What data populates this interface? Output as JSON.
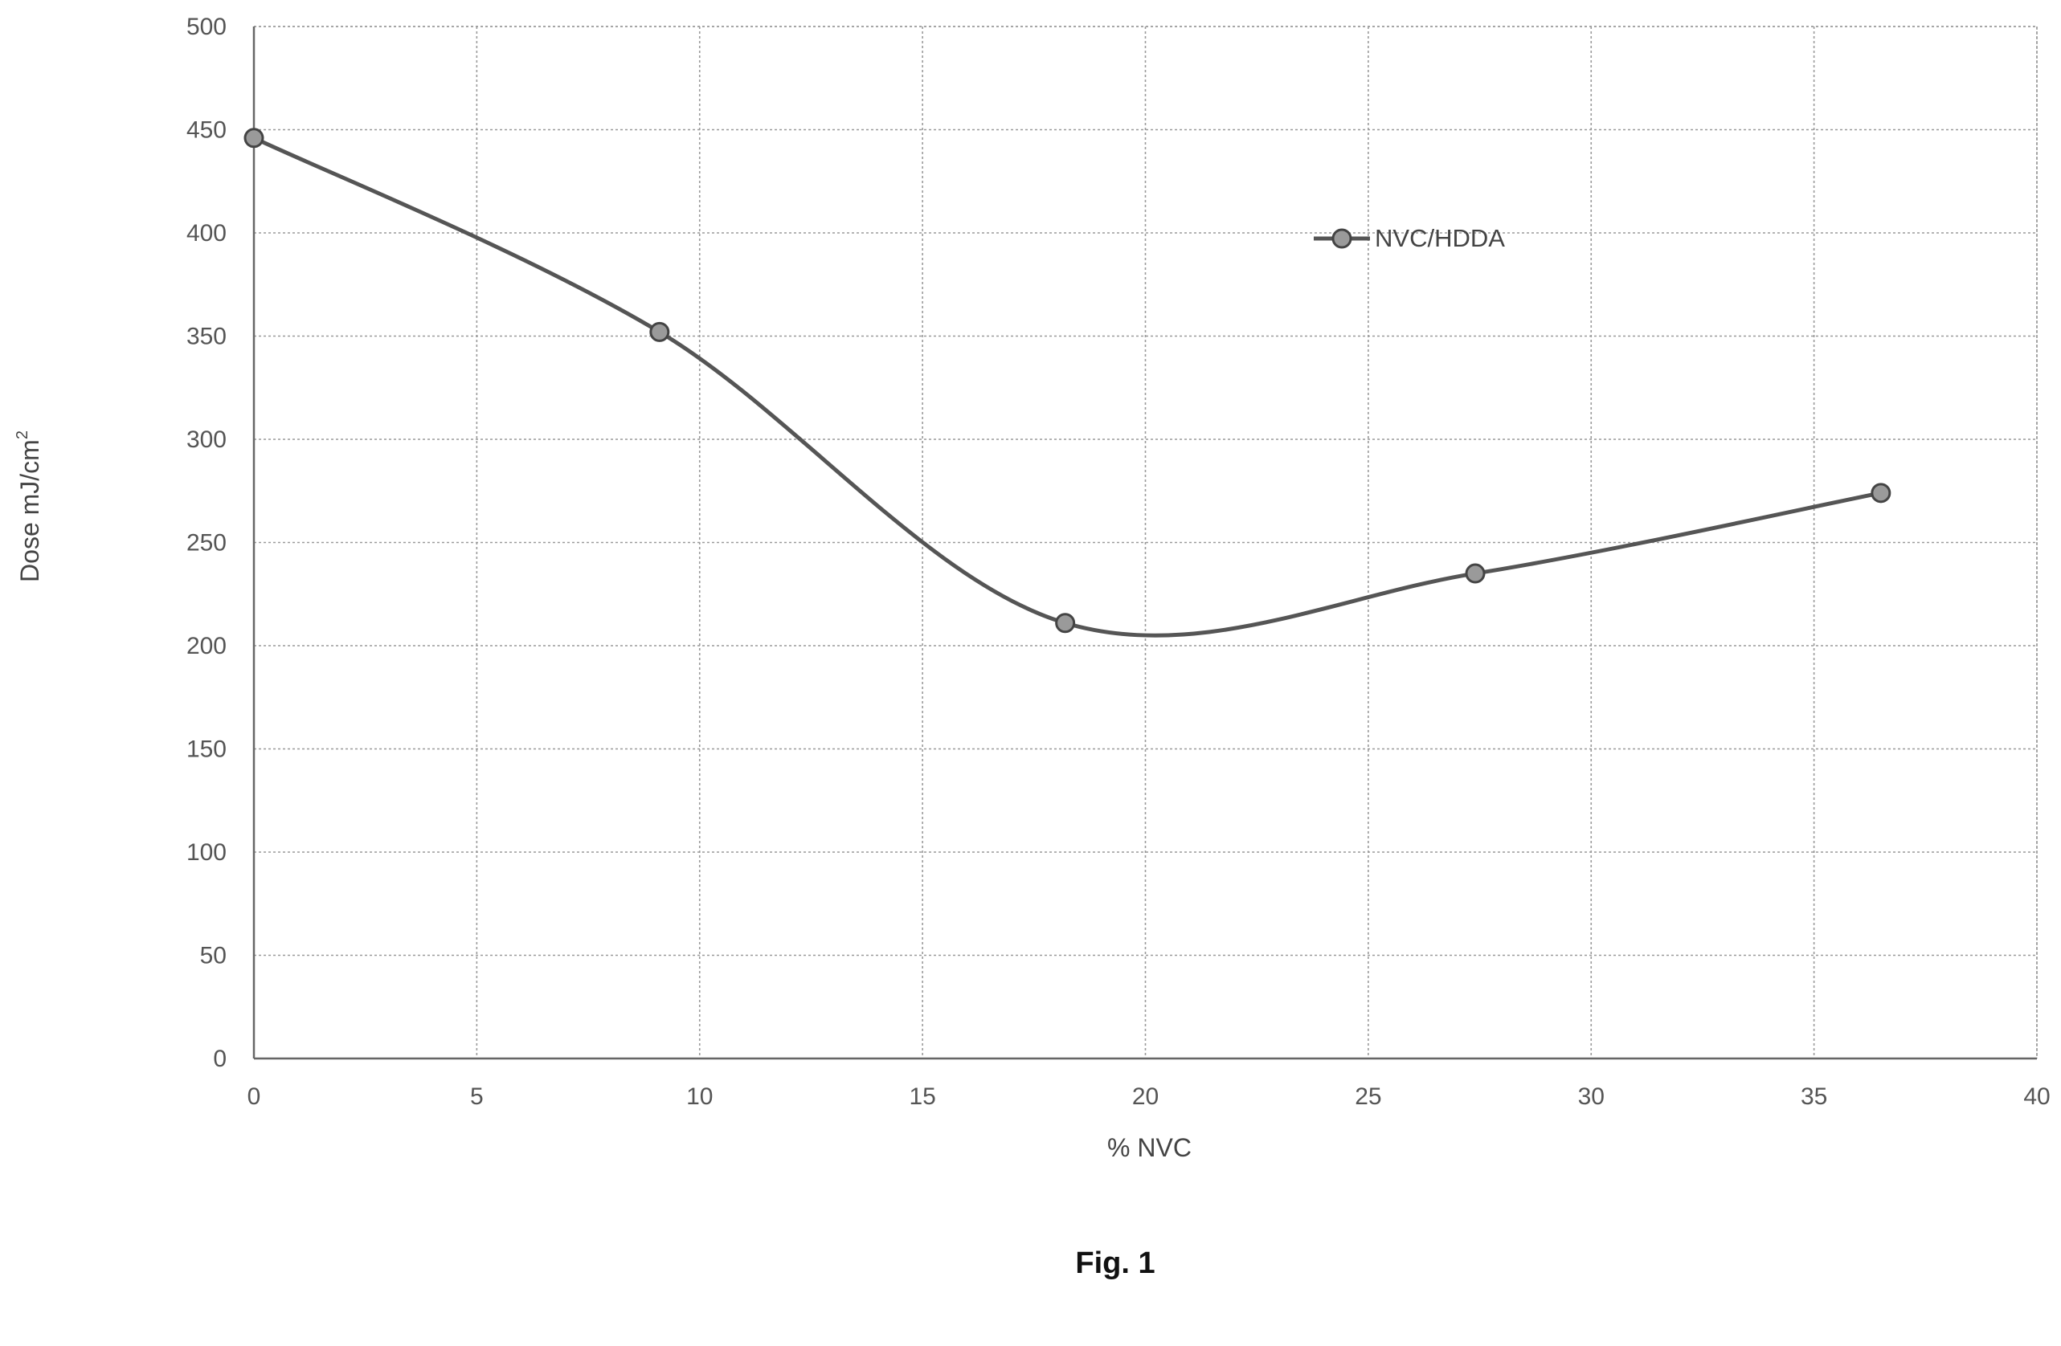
{
  "chart_data": {
    "type": "line",
    "title": "",
    "xlabel": "% NVC",
    "ylabel": "Dose mJ/cm",
    "ylabel_superscript": "2",
    "xlim": [
      0,
      40
    ],
    "ylim": [
      0,
      500
    ],
    "x_ticks": [
      "0",
      "5",
      "10",
      "15",
      "20",
      "25",
      "30",
      "35",
      "40"
    ],
    "y_ticks": [
      "0",
      "50",
      "100",
      "150",
      "200",
      "250",
      "300",
      "350",
      "400",
      "450",
      "500"
    ],
    "x_tick_values": [
      0,
      5,
      10,
      15,
      20,
      25,
      30,
      35,
      40
    ],
    "y_tick_values": [
      0,
      50,
      100,
      150,
      200,
      250,
      300,
      350,
      400,
      450,
      500
    ],
    "grid": true,
    "smooth": true,
    "legend_position": "upper-right inside plot",
    "series": [
      {
        "name": "NVC/HDDA",
        "x": [
          0,
          9.1,
          18.2,
          27.4,
          36.5
        ],
        "y": [
          446,
          352,
          211,
          235,
          274
        ],
        "color": "#555555"
      }
    ]
  },
  "figure_caption": "Fig. 1"
}
